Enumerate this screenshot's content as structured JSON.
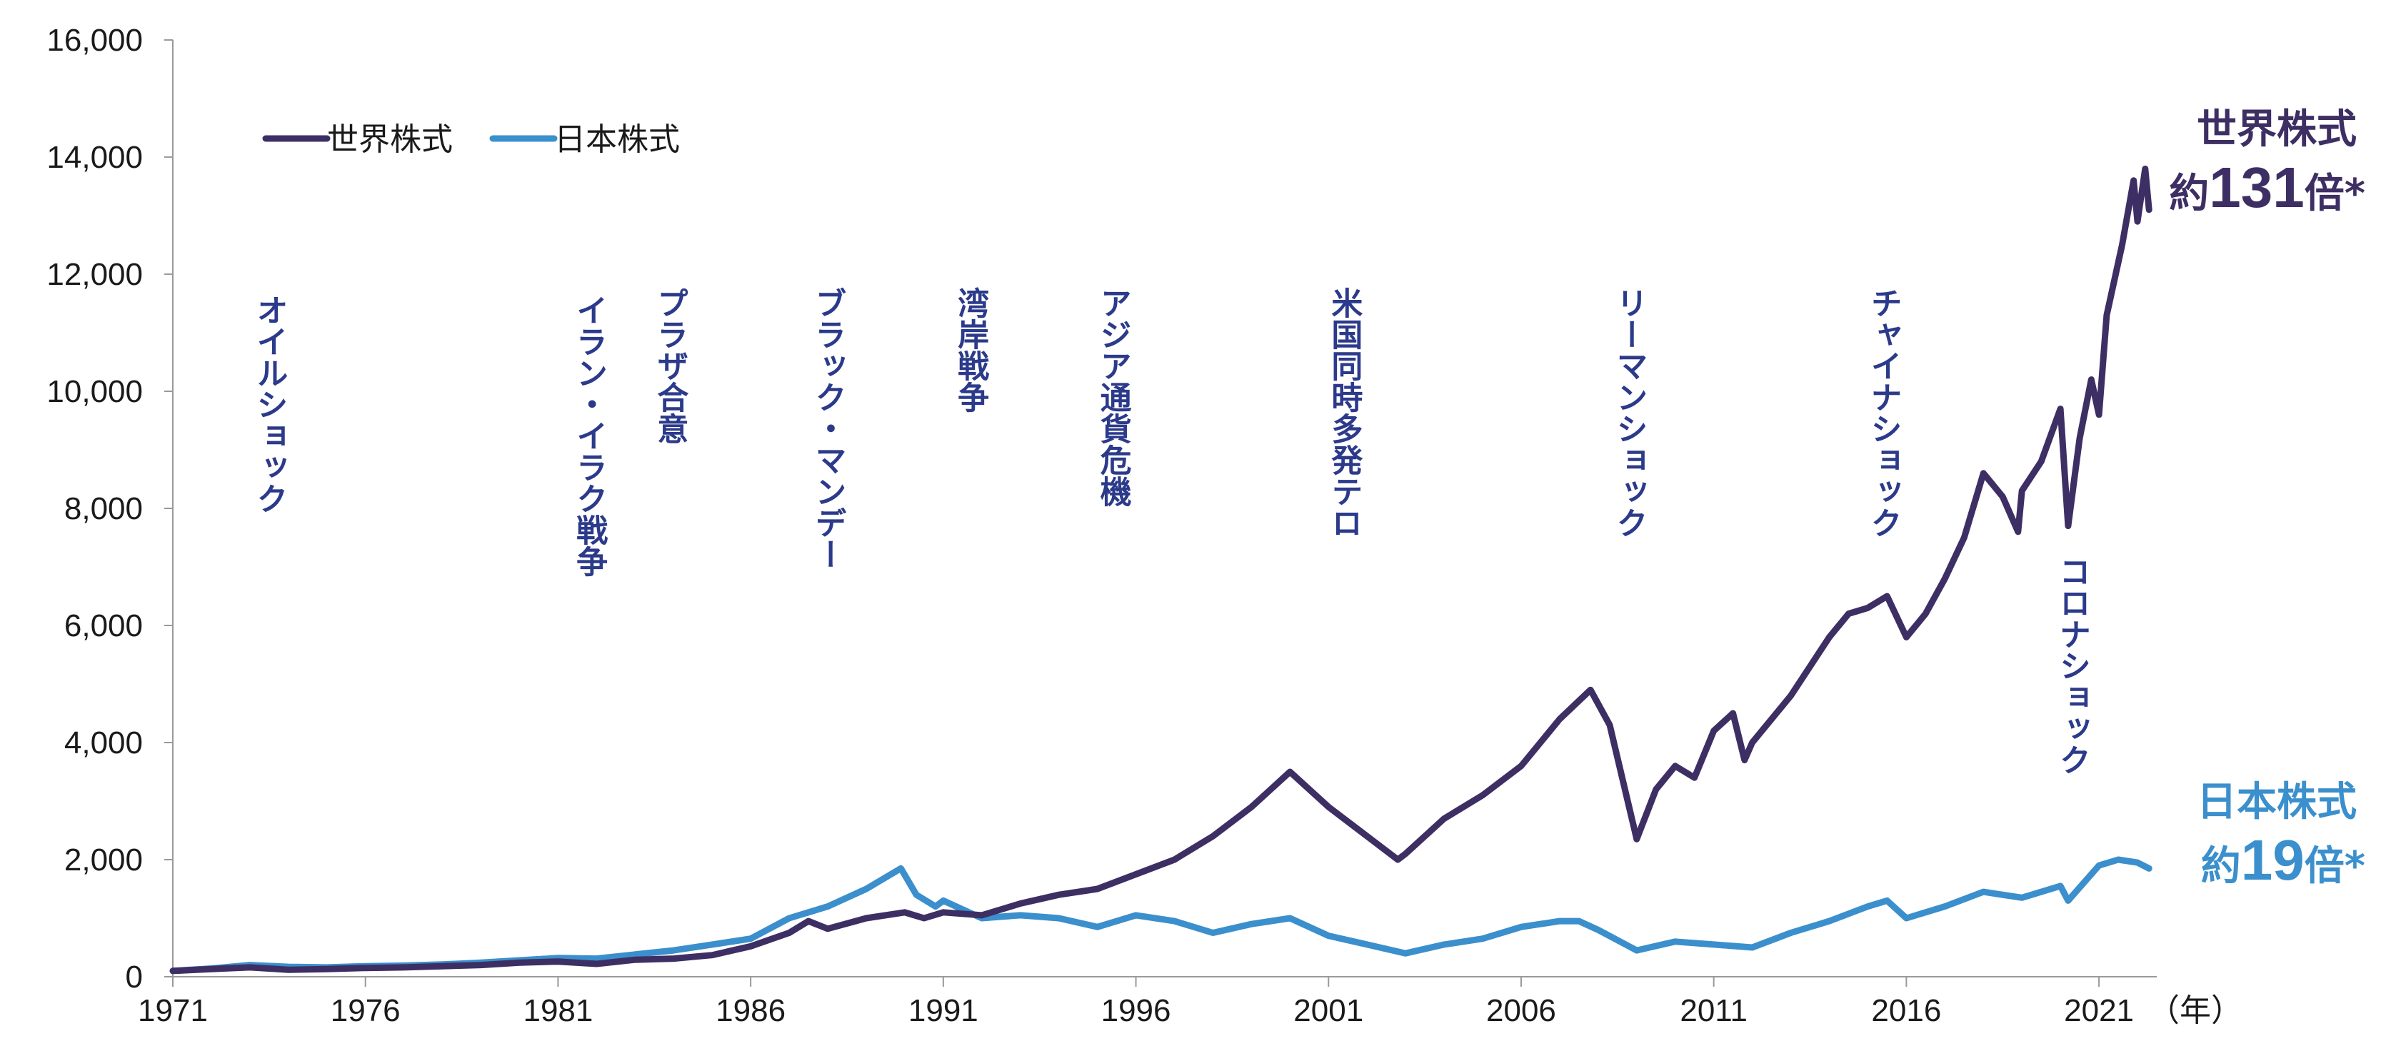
{
  "chart_data": {
    "type": "line",
    "xlabel_unit": "（年）",
    "xlim": [
      1971,
      2022.5
    ],
    "ylim": [
      0,
      16000
    ],
    "x_ticks": [
      "1971",
      "1976",
      "1981",
      "1986",
      "1991",
      "1996",
      "2001",
      "2006",
      "2011",
      "2016",
      "2021"
    ],
    "y_ticks": [
      "0",
      "2,000",
      "4,000",
      "6,000",
      "8,000",
      "10,000",
      "12,000",
      "14,000",
      "16,000"
    ],
    "grid": false,
    "legend_position": "top-left",
    "series": [
      {
        "name": "世界株式",
        "color": "#3d2f63",
        "points": [
          [
            1971,
            100
          ],
          [
            1972,
            130
          ],
          [
            1973,
            160
          ],
          [
            1974,
            120
          ],
          [
            1975,
            130
          ],
          [
            1976,
            150
          ],
          [
            1977,
            160
          ],
          [
            1978,
            180
          ],
          [
            1979,
            200
          ],
          [
            1980,
            240
          ],
          [
            1981,
            260
          ],
          [
            1982,
            220
          ],
          [
            1983,
            290
          ],
          [
            1984,
            310
          ],
          [
            1985,
            370
          ],
          [
            1986,
            520
          ],
          [
            1987,
            750
          ],
          [
            1987.5,
            950
          ],
          [
            1988,
            820
          ],
          [
            1989,
            1000
          ],
          [
            1990,
            1100
          ],
          [
            1990.5,
            1000
          ],
          [
            1991,
            1100
          ],
          [
            1992,
            1050
          ],
          [
            1993,
            1250
          ],
          [
            1994,
            1400
          ],
          [
            1995,
            1500
          ],
          [
            1996,
            1750
          ],
          [
            1997,
            2000
          ],
          [
            1998,
            2400
          ],
          [
            1999,
            2900
          ],
          [
            2000,
            3500
          ],
          [
            2001,
            2900
          ],
          [
            2002,
            2400
          ],
          [
            2002.8,
            2000
          ],
          [
            2003,
            2100
          ],
          [
            2004,
            2700
          ],
          [
            2005,
            3100
          ],
          [
            2006,
            3600
          ],
          [
            2007,
            4400
          ],
          [
            2007.8,
            4900
          ],
          [
            2008.3,
            4300
          ],
          [
            2009,
            2350
          ],
          [
            2009.5,
            3200
          ],
          [
            2010,
            3600
          ],
          [
            2010.5,
            3400
          ],
          [
            2011,
            4200
          ],
          [
            2011.5,
            4500
          ],
          [
            2011.8,
            3700
          ],
          [
            2012,
            4000
          ],
          [
            2013,
            4800
          ],
          [
            2014,
            5800
          ],
          [
            2014.5,
            6200
          ],
          [
            2015,
            6300
          ],
          [
            2015.5,
            6500
          ],
          [
            2016,
            5800
          ],
          [
            2016.5,
            6200
          ],
          [
            2017,
            6800
          ],
          [
            2017.5,
            7500
          ],
          [
            2018,
            8600
          ],
          [
            2018.5,
            8200
          ],
          [
            2018.9,
            7600
          ],
          [
            2019,
            8300
          ],
          [
            2019.5,
            8800
          ],
          [
            2020,
            9700
          ],
          [
            2020.2,
            7700
          ],
          [
            2020.5,
            9200
          ],
          [
            2020.8,
            10200
          ],
          [
            2021,
            9600
          ],
          [
            2021.2,
            11300
          ],
          [
            2021.6,
            12500
          ],
          [
            2021.9,
            13600
          ],
          [
            2022,
            12900
          ],
          [
            2022.2,
            13800
          ],
          [
            2022.3,
            13100
          ]
        ]
      },
      {
        "name": "日本株式",
        "color": "#3b8fcc",
        "points": [
          [
            1971,
            100
          ],
          [
            1972,
            140
          ],
          [
            1973,
            200
          ],
          [
            1974,
            170
          ],
          [
            1975,
            160
          ],
          [
            1976,
            180
          ],
          [
            1977,
            190
          ],
          [
            1978,
            210
          ],
          [
            1979,
            240
          ],
          [
            1980,
            280
          ],
          [
            1981,
            320
          ],
          [
            1982,
            310
          ],
          [
            1983,
            380
          ],
          [
            1984,
            450
          ],
          [
            1985,
            550
          ],
          [
            1986,
            650
          ],
          [
            1987,
            1000
          ],
          [
            1988,
            1200
          ],
          [
            1989,
            1500
          ],
          [
            1989.9,
            1850
          ],
          [
            1990.3,
            1400
          ],
          [
            1990.8,
            1200
          ],
          [
            1991,
            1300
          ],
          [
            1992,
            1000
          ],
          [
            1993,
            1050
          ],
          [
            1994,
            1000
          ],
          [
            1995,
            850
          ],
          [
            1996,
            1050
          ],
          [
            1997,
            950
          ],
          [
            1998,
            750
          ],
          [
            1999,
            900
          ],
          [
            2000,
            1000
          ],
          [
            2001,
            700
          ],
          [
            2002,
            550
          ],
          [
            2003,
            400
          ],
          [
            2004,
            550
          ],
          [
            2005,
            650
          ],
          [
            2006,
            850
          ],
          [
            2007,
            950
          ],
          [
            2007.5,
            950
          ],
          [
            2008,
            800
          ],
          [
            2009,
            450
          ],
          [
            2010,
            600
          ],
          [
            2011,
            550
          ],
          [
            2012,
            500
          ],
          [
            2013,
            750
          ],
          [
            2014,
            950
          ],
          [
            2015,
            1200
          ],
          [
            2015.5,
            1300
          ],
          [
            2016,
            1000
          ],
          [
            2017,
            1200
          ],
          [
            2018,
            1450
          ],
          [
            2019,
            1350
          ],
          [
            2020,
            1550
          ],
          [
            2020.2,
            1300
          ],
          [
            2021,
            1900
          ],
          [
            2021.5,
            2000
          ],
          [
            2022,
            1950
          ],
          [
            2022.3,
            1850
          ]
        ]
      }
    ],
    "events": [
      {
        "label": "オイルショック",
        "year": 1973.5
      },
      {
        "label": "イラン・イラク戦争",
        "year": 1981.8
      },
      {
        "label": "プラザ合意",
        "year": 1983.9
      },
      {
        "label": "ブラック・マンデー",
        "year": 1988.0
      },
      {
        "label": "湾岸戦争",
        "year": 1991.7
      },
      {
        "label": "アジア通貨危機",
        "year": 1995.4
      },
      {
        "label": "米国同時多発テロ",
        "year": 2001.4
      },
      {
        "label": "リーマンショック",
        "year": 2008.8
      },
      {
        "label": "チャイナショック",
        "year": 2015.4
      },
      {
        "label": "コロナショック",
        "year": 2020.3
      }
    ],
    "end_labels": [
      {
        "name": "世界株式",
        "prefix": "約",
        "number": "131",
        "suffix": "倍*",
        "color": "#3d2f63"
      },
      {
        "name": "日本株式",
        "prefix": "約",
        "number": "19",
        "suffix": "倍*",
        "color": "#3b8fcc"
      }
    ]
  }
}
